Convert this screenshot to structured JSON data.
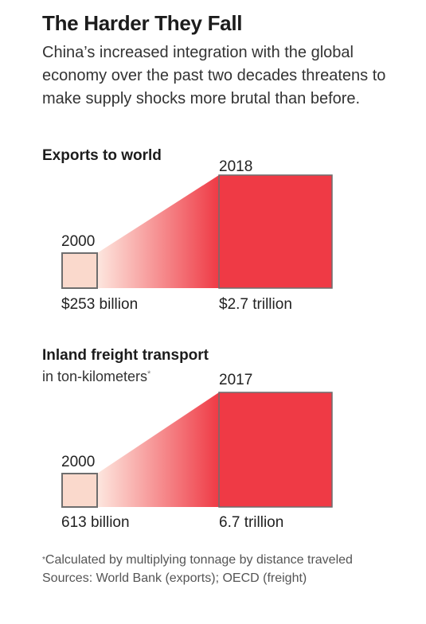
{
  "header": {
    "title": "The Harder They Fall",
    "subtitle": "China’s increased integration with the global economy over the past two decades threatens to make supply shocks more brutal than before."
  },
  "colors": {
    "small_square": "#fad9cc",
    "large_square": "#ef3a45",
    "square_stroke": "#6e6e6e",
    "gradient_start": "#fde7df",
    "gradient_end": "#ef3a45"
  },
  "chart_data": [
    {
      "type": "area",
      "title": "Exports to world",
      "subtitle": "",
      "unit": "USD",
      "x": [
        "2000",
        "2018"
      ],
      "values": [
        253000000000,
        2700000000000
      ],
      "value_labels": [
        "$253 billion",
        "$2.7 trillion"
      ]
    },
    {
      "type": "area",
      "title": "Inland freight transport",
      "subtitle": "in ton-kilometers",
      "unit": "ton-kilometers",
      "x": [
        "2000",
        "2017"
      ],
      "values": [
        613000000000,
        6700000000000
      ],
      "value_labels": [
        "613 billion",
        "6.7 trillion"
      ]
    }
  ],
  "footer": {
    "note_mark": "*",
    "note": "Calculated by multiplying tonnage by distance traveled",
    "sources": "Sources: World Bank (exports); OECD (freight)"
  }
}
